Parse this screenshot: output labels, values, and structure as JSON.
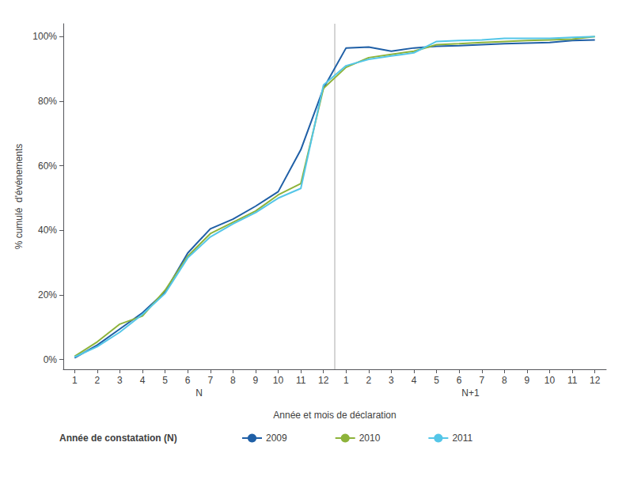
{
  "chart_data": {
    "type": "line",
    "xlabel": "Année et mois de déclaration",
    "ylabel": "% cumulé  d'événements",
    "legend_title": "Année de constatation (N)",
    "annotations": [
      "N",
      "N+1"
    ],
    "categories": [
      "1",
      "2",
      "3",
      "4",
      "5",
      "6",
      "7",
      "8",
      "9",
      "10",
      "11",
      "12",
      "1",
      "2",
      "3",
      "4",
      "5",
      "6",
      "7",
      "8",
      "9",
      "10",
      "11",
      "12"
    ],
    "series": [
      {
        "name": "2009",
        "color": "#1f5fa6",
        "values": [
          0.5,
          4.5,
          9.5,
          14.5,
          21.0,
          33.0,
          40.5,
          43.5,
          47.5,
          52.0,
          65.0,
          84.0,
          96.5,
          96.8,
          95.5,
          96.5,
          97.0,
          97.2,
          97.5,
          97.8,
          98.0,
          98.2,
          98.8,
          99.0
        ]
      },
      {
        "name": "2010",
        "color": "#8db33a",
        "values": [
          1.0,
          5.5,
          11.0,
          13.5,
          21.5,
          32.0,
          39.0,
          42.5,
          46.0,
          51.0,
          54.5,
          84.0,
          90.5,
          93.5,
          94.5,
          95.5,
          97.5,
          97.8,
          98.2,
          98.5,
          98.8,
          99.0,
          99.2,
          100.0
        ]
      },
      {
        "name": "2011",
        "color": "#54c6e8",
        "values": [
          0.8,
          4.0,
          8.5,
          14.0,
          20.5,
          31.5,
          38.0,
          42.0,
          45.5,
          50.0,
          53.0,
          85.0,
          91.0,
          93.0,
          94.0,
          95.0,
          98.5,
          98.8,
          99.0,
          99.5,
          99.5,
          99.5,
          99.8,
          100.0
        ]
      }
    ],
    "ylim": [
      -3,
      104
    ],
    "yticks": [
      {
        "value": 0,
        "label": "0%"
      },
      {
        "value": 20,
        "label": "20%"
      },
      {
        "value": 40,
        "label": "40%"
      },
      {
        "value": 60,
        "label": "60%"
      },
      {
        "value": 80,
        "label": "80%"
      },
      {
        "value": 100,
        "label": "100%"
      }
    ],
    "grid": false,
    "legend": "bottom"
  }
}
